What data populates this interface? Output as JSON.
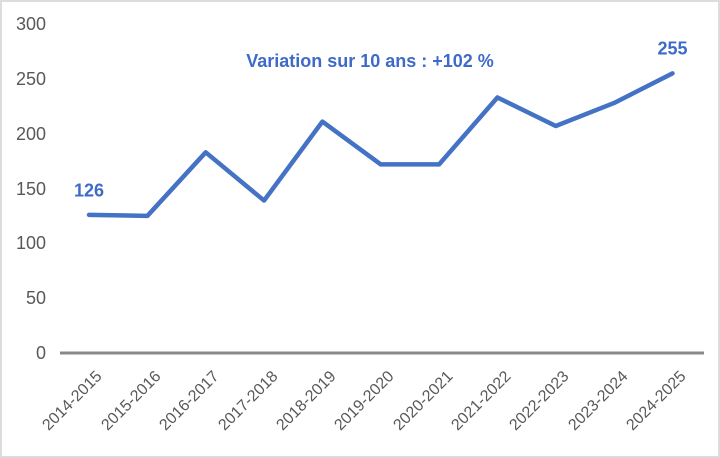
{
  "chart_data": {
    "type": "line",
    "title": "Variation sur 10 ans : +102 %",
    "categories": [
      "2014-2015",
      "2015-2016",
      "2016-2017",
      "2017-2018",
      "2018-2019",
      "2019-2020",
      "2020-2021",
      "2021-2022",
      "2022-2023",
      "2023-2024",
      "2024-2025"
    ],
    "values": [
      126,
      125,
      183,
      139,
      211,
      172,
      172,
      233,
      207,
      228,
      255
    ],
    "data_labels": [
      {
        "index": 0,
        "text": "126"
      },
      {
        "index": 10,
        "text": "255"
      }
    ],
    "xlabel": "",
    "ylabel": "",
    "ylim": [
      0,
      300
    ],
    "yticks": [
      0,
      50,
      100,
      150,
      200,
      250,
      300
    ],
    "grid": false,
    "legend": "none",
    "colors": {
      "line": "#4472C4",
      "annotation": "#3E6AC8",
      "axis_line": "#898989",
      "tick_text": "#595959"
    }
  }
}
